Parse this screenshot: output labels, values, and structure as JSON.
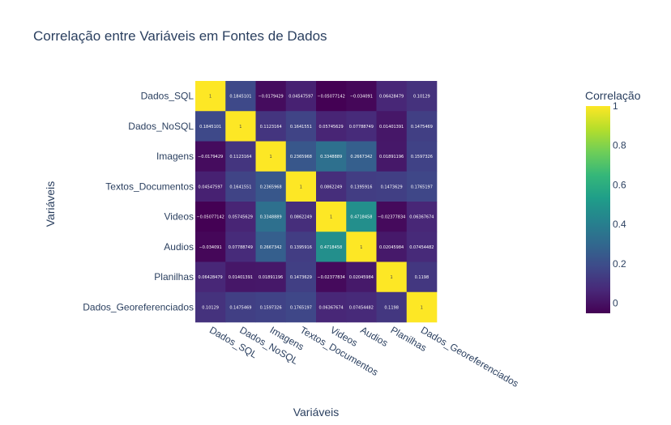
{
  "chart_data": {
    "type": "heatmap",
    "title": "Correlação entre Variáveis em Fontes de Dados",
    "xlabel": "Variáveis",
    "ylabel": "Variáveis",
    "categories": [
      "Dados_SQL",
      "Dados_NoSQL",
      "Imagens",
      "Textos_Documentos",
      "Videos",
      "Audios",
      "Planilhas",
      "Dados_Georeferenciados"
    ],
    "matrix": [
      [
        1,
        0.1845101,
        -0.0179429,
        0.04547597,
        -0.05077142,
        -0.034091,
        0.06428479,
        0.10129
      ],
      [
        0.1845101,
        1,
        0.1123164,
        0.1641551,
        0.05745629,
        0.07788749,
        0.01401391,
        0.1475469
      ],
      [
        -0.0179429,
        0.1123164,
        1,
        0.2365968,
        0.3348889,
        0.2667342,
        0.01891196,
        0.1597326
      ],
      [
        0.04547597,
        0.1641551,
        0.2365968,
        1,
        0.0862249,
        0.1395916,
        0.1473629,
        0.1765197
      ],
      [
        -0.05077142,
        0.05745629,
        0.3348889,
        0.0862249,
        1,
        0.4718458,
        -0.02377834,
        0.06367674
      ],
      [
        -0.034091,
        0.07788749,
        0.2667342,
        0.1395916,
        0.4718458,
        1,
        0.02045984,
        0.07454482
      ],
      [
        0.06428479,
        0.01401391,
        0.01891196,
        0.1473629,
        -0.02377834,
        0.02045984,
        1,
        0.1198
      ],
      [
        0.10129,
        0.1475469,
        0.1597326,
        0.1765197,
        0.06367674,
        0.07454482,
        0.1198,
        1
      ]
    ],
    "text": [
      [
        "1",
        "0.1845101",
        "−0.0179429",
        "0.04547597",
        "−0.05077142",
        "−0.034091",
        "0.06428479",
        "0.10129"
      ],
      [
        "0.1845101",
        "1",
        "0.1123164",
        "0.1641551",
        "0.05745629",
        "0.07788749",
        "0.01401391",
        "0.1475469"
      ],
      [
        "−0.0179429",
        "0.1123164",
        "1",
        "0.2365968",
        "0.3348889",
        "0.2667342",
        "0.01891196",
        "0.1597326"
      ],
      [
        "0.04547597",
        "0.1641551",
        "0.2365968",
        "1",
        "0.0862249",
        "0.1395916",
        "0.1473629",
        "0.1765197"
      ],
      [
        "−0.05077142",
        "0.05745629",
        "0.3348889",
        "0.0862249",
        "1",
        "0.4718458",
        "−0.02377834",
        "0.06367674"
      ],
      [
        "−0.034091",
        "0.07788749",
        "0.2667342",
        "0.1395916",
        "0.4718458",
        "1",
        "0.02045984",
        "0.07454482"
      ],
      [
        "0.06428479",
        "0.01401391",
        "0.01891196",
        "0.1473629",
        "−0.02377834",
        "0.02045984",
        "1",
        "0.1198"
      ],
      [
        "0.10129",
        "0.1475469",
        "0.1597326",
        "0.1765197",
        "0.06367674",
        "0.07454482",
        "0.1198",
        "1"
      ]
    ],
    "colorscale": "Viridis",
    "zmin": -0.0507,
    "zmax": 1,
    "colorbar": {
      "title": "Correlação",
      "ticks": [
        0,
        0.2,
        0.4,
        0.6,
        0.8,
        1
      ],
      "tick_labels": [
        "0",
        "0.2",
        "0.4",
        "0.6",
        "0.8",
        "1"
      ]
    }
  }
}
